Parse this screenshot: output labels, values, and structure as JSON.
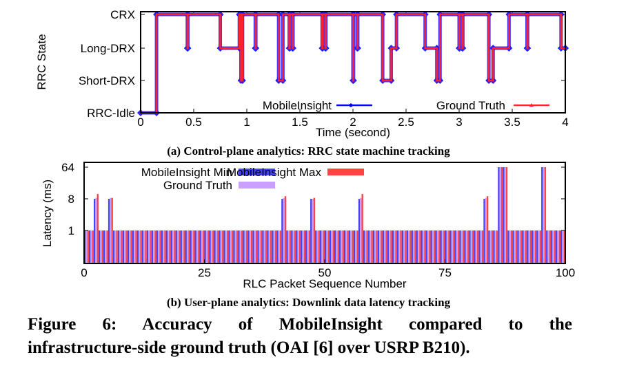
{
  "chart_data": [
    {
      "type": "line",
      "xlabel": "Time (second)",
      "ylabel": "RRC State",
      "xlim": [
        0,
        4
      ],
      "xticks": [
        "0",
        "0.5",
        "1",
        "1.5",
        "2",
        "2.5",
        "3",
        "3.5",
        "4"
      ],
      "ytick_labels": [
        "CRX",
        "Long-DRX",
        "Short-DRX",
        "RRC-Idle"
      ],
      "grid": false,
      "legend_position": "bottom-inside",
      "series": [
        {
          "name": "MobileInsight",
          "color": "#0000ff",
          "marker": "diamond",
          "points": [
            [
              0,
              "RRC-Idle"
            ],
            [
              0.15,
              "CRX"
            ],
            [
              0.44,
              "Long-DRX"
            ],
            [
              0.445,
              "CRX"
            ],
            [
              0.75,
              "Long-DRX"
            ],
            [
              0.93,
              "CRX"
            ],
            [
              0.945,
              "Short-DRX"
            ],
            [
              0.96,
              "CRX"
            ],
            [
              1.08,
              "Long-DRX"
            ],
            [
              1.085,
              "CRX"
            ],
            [
              1.3,
              "Short-DRX"
            ],
            [
              1.34,
              "CRX"
            ],
            [
              1.4,
              "Long-DRX"
            ],
            [
              1.405,
              "CRX"
            ],
            [
              1.43,
              "Long-DRX"
            ],
            [
              1.435,
              "CRX"
            ],
            [
              1.71,
              "Long-DRX"
            ],
            [
              1.715,
              "CRX"
            ],
            [
              1.74,
              "Long-DRX"
            ],
            [
              1.745,
              "CRX"
            ],
            [
              2.0,
              "Short-DRX"
            ],
            [
              2.005,
              "CRX"
            ],
            [
              2.04,
              "Long-DRX"
            ],
            [
              2.045,
              "CRX"
            ],
            [
              2.28,
              "Short-DRX"
            ],
            [
              2.36,
              "Long-DRX"
            ],
            [
              2.41,
              "CRX"
            ],
            [
              2.68,
              "Long-DRX"
            ],
            [
              2.79,
              "Short-DRX"
            ],
            [
              2.82,
              "CRX"
            ],
            [
              3.0,
              "Long-DRX"
            ],
            [
              3.005,
              "CRX"
            ],
            [
              3.03,
              "Long-DRX"
            ],
            [
              3.035,
              "CRX"
            ],
            [
              3.28,
              "Short-DRX"
            ],
            [
              3.32,
              "Long-DRX"
            ],
            [
              3.47,
              "CRX"
            ],
            [
              3.64,
              "Long-DRX"
            ],
            [
              3.645,
              "CRX"
            ],
            [
              3.96,
              "Long-DRX"
            ],
            [
              4.0,
              "Long-DRX"
            ]
          ]
        },
        {
          "name": "Ground Truth",
          "color": "#ff2020",
          "marker": "triangle",
          "points": [
            [
              0,
              "RRC-Idle"
            ],
            [
              0.15,
              "CRX"
            ],
            [
              0.44,
              "Long-DRX"
            ],
            [
              0.445,
              "CRX"
            ],
            [
              0.75,
              "Long-DRX"
            ],
            [
              0.93,
              "CRX"
            ],
            [
              0.945,
              "Short-DRX"
            ],
            [
              0.96,
              "CRX"
            ],
            [
              1.08,
              "Long-DRX"
            ],
            [
              1.085,
              "CRX"
            ],
            [
              1.3,
              "Short-DRX"
            ],
            [
              1.34,
              "CRX"
            ],
            [
              1.4,
              "Long-DRX"
            ],
            [
              1.405,
              "CRX"
            ],
            [
              1.43,
              "Long-DRX"
            ],
            [
              1.435,
              "CRX"
            ],
            [
              1.71,
              "Long-DRX"
            ],
            [
              1.715,
              "CRX"
            ],
            [
              1.74,
              "Long-DRX"
            ],
            [
              1.745,
              "CRX"
            ],
            [
              2.0,
              "Short-DRX"
            ],
            [
              2.005,
              "CRX"
            ],
            [
              2.04,
              "Long-DRX"
            ],
            [
              2.045,
              "CRX"
            ],
            [
              2.28,
              "Short-DRX"
            ],
            [
              2.36,
              "Long-DRX"
            ],
            [
              2.41,
              "CRX"
            ],
            [
              2.68,
              "Long-DRX"
            ],
            [
              2.79,
              "Short-DRX"
            ],
            [
              2.82,
              "CRX"
            ],
            [
              3.0,
              "Long-DRX"
            ],
            [
              3.005,
              "CRX"
            ],
            [
              3.03,
              "Long-DRX"
            ],
            [
              3.035,
              "CRX"
            ],
            [
              3.28,
              "Short-DRX"
            ],
            [
              3.32,
              "Long-DRX"
            ],
            [
              3.47,
              "CRX"
            ],
            [
              3.64,
              "Long-DRX"
            ],
            [
              3.645,
              "CRX"
            ],
            [
              3.96,
              "Long-DRX"
            ],
            [
              4.0,
              "Long-DRX"
            ]
          ]
        }
      ]
    },
    {
      "type": "bar",
      "xlabel": "RLC Packet Sequence Number",
      "ylabel": "Latency (ms)",
      "xlim": [
        0,
        100
      ],
      "xticks": [
        "0",
        "25",
        "50",
        "75",
        "100"
      ],
      "yscale": "log",
      "yticks": [
        "1",
        "8",
        "64"
      ],
      "ylim": [
        0.125,
        64
      ],
      "grid": false,
      "legend_position": "top",
      "series": [
        {
          "name": "MobileInsight Min",
          "color": "#4444ff",
          "values": [
            1,
            1,
            8,
            1,
            1,
            8,
            1,
            1,
            1,
            1,
            1,
            1,
            1,
            1,
            1,
            1,
            1,
            1,
            1,
            1,
            1,
            1,
            1,
            1,
            1,
            1,
            1,
            1,
            1,
            1,
            1,
            1,
            1,
            1,
            1,
            1,
            1,
            1,
            1,
            1,
            1,
            8,
            1,
            1,
            1,
            1,
            1,
            8,
            1,
            1,
            1,
            1,
            1,
            1,
            1,
            1,
            1,
            8,
            1,
            1,
            1,
            1,
            1,
            1,
            1,
            1,
            1,
            1,
            1,
            1,
            1,
            1,
            1,
            1,
            1,
            1,
            1,
            1,
            1,
            1,
            1,
            1,
            1,
            8,
            1,
            1,
            64,
            64,
            1,
            1,
            1,
            1,
            1,
            1,
            1,
            64,
            1,
            1,
            1,
            1
          ]
        },
        {
          "name": "Ground Truth",
          "color": "#c9a0ff",
          "values": [
            1,
            1,
            8.5,
            1,
            1,
            8.5,
            1,
            1,
            1,
            1,
            1,
            1,
            1,
            1,
            1,
            1,
            1,
            1,
            1,
            1,
            1,
            1,
            1,
            1,
            1,
            1,
            1,
            1,
            1,
            1,
            1,
            1,
            1,
            1,
            1,
            1,
            1,
            1,
            1,
            1,
            1,
            8.5,
            1,
            1,
            1,
            1,
            1,
            8,
            1,
            1,
            1,
            1,
            1,
            1,
            1,
            1,
            1,
            8.5,
            1,
            1,
            1,
            1,
            1,
            1,
            1,
            1,
            1,
            1,
            1,
            1,
            1,
            1,
            1,
            1,
            1,
            1,
            1,
            1,
            1,
            1,
            1,
            1,
            1,
            8.5,
            1,
            1,
            64,
            64,
            1,
            1,
            1,
            1,
            1,
            1,
            1,
            64,
            1,
            1,
            1,
            1
          ]
        },
        {
          "name": "MobileInsight Max",
          "color": "#ff4444",
          "values": [
            1,
            1,
            11,
            1,
            1,
            8.5,
            1,
            1,
            1,
            1,
            1,
            1,
            1,
            1,
            1,
            1,
            1,
            1,
            1,
            1,
            1,
            1,
            1,
            1,
            1,
            1,
            1,
            1,
            1,
            1,
            1,
            1,
            1,
            1,
            1,
            1,
            1,
            1,
            1,
            1,
            1,
            9.5,
            1,
            1,
            1,
            1,
            1,
            8.5,
            1,
            1,
            1,
            1,
            1,
            1,
            1,
            1,
            1,
            11,
            1,
            1,
            1,
            1,
            1,
            1,
            1,
            1,
            1,
            1,
            1,
            1,
            1,
            1,
            1,
            1,
            1,
            1,
            1,
            1,
            1,
            1,
            1,
            1,
            1,
            9.5,
            1,
            1,
            64,
            64,
            1,
            1,
            1,
            1,
            1,
            1,
            1,
            64,
            1,
            1,
            1,
            1
          ]
        }
      ]
    }
  ],
  "captions": {
    "a": "(a) Control-plane analytics: RRC state machine tracking",
    "b": "(b) User-plane analytics: Downlink data latency tracking",
    "figure_line1": "Figure 6: Accuracy of MobileInsight compared to the",
    "figure_line2": "infrastructure-side ground truth (OAI [6] over USRP B210)."
  }
}
